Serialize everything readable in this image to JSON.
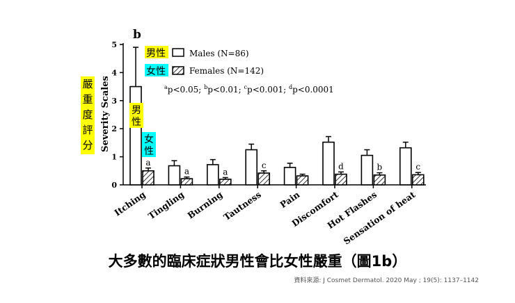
{
  "chart_data": {
    "type": "bar",
    "panel_label": "b",
    "ylabel": "Severity Scales",
    "ylim": [
      0,
      5
    ],
    "yticks": [
      "0",
      "1",
      "2",
      "3",
      "4",
      "5"
    ],
    "categories": [
      "Itching",
      "Tingling",
      "Burning",
      "Tautness",
      "Pain",
      "Discomfort",
      "Hot Flashes",
      "Sensation of heat"
    ],
    "series": [
      {
        "name": "Males (N=86)",
        "pattern": "open",
        "values": [
          3.5,
          0.68,
          0.72,
          1.25,
          0.62,
          1.52,
          1.05,
          1.32
        ],
        "errors": [
          1.4,
          0.18,
          0.18,
          0.2,
          0.15,
          0.2,
          0.2,
          0.2
        ]
      },
      {
        "name": "Females (N=142)",
        "pattern": "hatched",
        "values": [
          0.5,
          0.22,
          0.2,
          0.42,
          0.32,
          0.38,
          0.35,
          0.36
        ],
        "errors": [
          0.1,
          0.06,
          0.06,
          0.08,
          0.06,
          0.08,
          0.08,
          0.08
        ]
      }
    ],
    "significance": [
      "a",
      "a",
      "a",
      "c",
      "",
      "d",
      "b",
      "c"
    ],
    "footnote_marks": [
      "a",
      "b",
      "c",
      "d"
    ],
    "footnote_texts": [
      "p<0.05; ",
      "p<0.01; ",
      "p<0.001; ",
      "p<0.0001"
    ]
  },
  "annotations": {
    "male_cn": "男性",
    "female_cn": "女性",
    "yaxis_cn": [
      "嚴",
      "重",
      "度",
      "評",
      "分"
    ],
    "male_bar_cn": [
      "男",
      "性"
    ],
    "female_bar_cn": [
      "女",
      "性"
    ],
    "highlight_yellow": "#ffff00",
    "highlight_cyan": "#00ffff"
  },
  "caption": "大多數的臨床症狀男性會比女性嚴重（圖1b）",
  "source": "資料來源: J Cosmet  Dermatol.  2020 May ; 19(5): 1137–1142"
}
